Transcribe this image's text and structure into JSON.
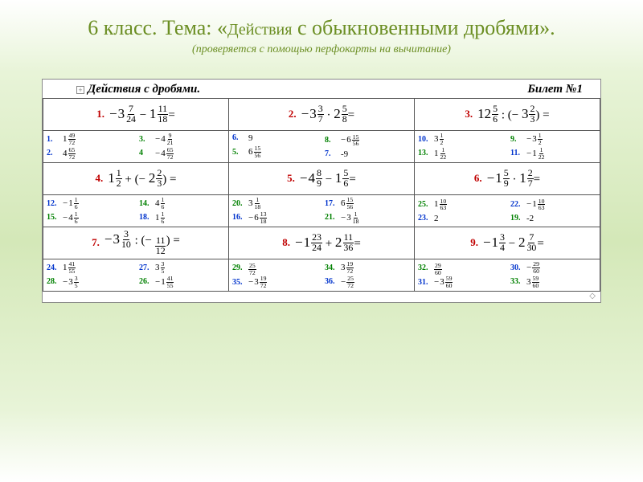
{
  "title_a": "6 класс.  Тема: «",
  "title_b": "Действия",
  "title_c": " с  обыкновенными дробями».",
  "subtitle": "(проверяется  с  помощью  перфокарты  на  вычитание)",
  "card_title": "Действия  с  дробями.",
  "card_ticket": "Билет №1",
  "colors": {
    "red": "#c00000",
    "blue": "#0033cc",
    "green": "#008000"
  },
  "problems": [
    [
      {
        "num": "1.",
        "color": "red",
        "expr": {
          "type": "mixed_op",
          "a": {
            "sign": "− ",
            "w": "3",
            "n": "7",
            "d": "24"
          },
          "op": "−",
          "b": {
            "w": "1",
            "n": "11",
            "d": "18"
          },
          "tail": "="
        }
      },
      {
        "num": "2.",
        "color": "red",
        "expr": {
          "type": "mixed_op",
          "a": {
            "sign": "− ",
            "w": "3",
            "n": "3",
            "d": "7"
          },
          "op": "·",
          "b": {
            "w": "2",
            "n": "5",
            "d": "8"
          },
          "tail": "="
        }
      },
      {
        "num": "3.",
        "color": "red",
        "expr": {
          "type": "mixed_op",
          "a": {
            "w": "12",
            "n": "5",
            "d": "6"
          },
          "op": ": (−",
          "b": {
            "w": "3",
            "n": "2",
            "d": "3"
          },
          "tail": ") ="
        }
      }
    ],
    [
      {
        "num": "4.",
        "color": "red",
        "expr": {
          "type": "mixed_op",
          "a": {
            "w": "1",
            "n": "1",
            "d": "2"
          },
          "op": "+ (−",
          "b": {
            "w": "2",
            "n": "2",
            "d": "3"
          },
          "tail": ") ="
        }
      },
      {
        "num": "5.",
        "color": "red",
        "expr": {
          "type": "mixed_op",
          "a": {
            "sign": "− ",
            "w": "4",
            "n": "8",
            "d": "9"
          },
          "op": "−",
          "b": {
            "w": "1",
            "n": "5",
            "d": "6"
          },
          "tail": "="
        }
      },
      {
        "num": "6.",
        "color": "red",
        "expr": {
          "type": "mixed_op",
          "a": {
            "sign": "− ",
            "w": "1",
            "n": "5",
            "d": "9"
          },
          "op": "·",
          "b": {
            "w": "1",
            "n": "2",
            "d": "7"
          },
          "tail": "="
        }
      }
    ],
    [
      {
        "num": "7.",
        "color": "red",
        "expr": {
          "type": "mixed_op",
          "a": {
            "sign": "− ",
            "w": "3",
            "n": "3",
            "d": "10"
          },
          "op": ": (−",
          "b": {
            "w": "",
            "n": "11",
            "d": "12"
          },
          "tail": ") ="
        }
      },
      {
        "num": "8.",
        "color": "red",
        "expr": {
          "type": "mixed_op",
          "a": {
            "sign": "− ",
            "w": "1",
            "n": "23",
            "d": "24"
          },
          "op": "+",
          "b": {
            "w": "2",
            "n": "11",
            "d": "36"
          },
          "tail": "="
        }
      },
      {
        "num": "9.",
        "color": "red",
        "expr": {
          "type": "mixed_op",
          "a": {
            "sign": "− ",
            "w": "1",
            "n": "3",
            "d": "4"
          },
          "op": "−",
          "b": {
            "w": "2",
            "n": "7",
            "d": "30"
          },
          "tail": "="
        }
      }
    ]
  ],
  "answers": [
    [
      {
        "cols": [
          [
            {
              "n": "1.",
              "c": "blue",
              "v": {
                "w": "1",
                "n": "49",
                "d": "72"
              }
            },
            {
              "n": "2.",
              "c": "blue",
              "v": {
                "w": "4",
                "n": "65",
                "d": "72"
              }
            }
          ],
          [
            {
              "n": "3.",
              "c": "green",
              "v": {
                "s": "−",
                "w": "4",
                "n": "9",
                "d": "21"
              }
            },
            {
              "n": "4",
              "c": "green",
              "v": {
                "s": "−",
                "w": "4",
                "n": "65",
                "d": "72"
              }
            }
          ]
        ]
      },
      {
        "cols": [
          [
            {
              "n": "6.",
              "c": "blue",
              "v": {
                "plain": "9"
              }
            },
            {
              "n": "5.",
              "c": "green",
              "v": {
                "w": "6",
                "n": "15",
                "d": "56"
              }
            }
          ],
          [
            {
              "n": "8.",
              "c": "green",
              "v": {
                "s": "−",
                "w": "6",
                "n": "15",
                "d": "56"
              }
            },
            {
              "n": "7.",
              "c": "blue",
              "v": {
                "plain": "-9"
              }
            }
          ]
        ]
      },
      {
        "cols": [
          [
            {
              "n": "10.",
              "c": "blue",
              "v": {
                "w": "3",
                "n": "1",
                "d": "2"
              }
            },
            {
              "n": "13.",
              "c": "green",
              "v": {
                "w": "1",
                "n": "1",
                "d": "22"
              }
            }
          ],
          [
            {
              "n": "9.",
              "c": "green",
              "v": {
                "s": "−",
                "w": "3",
                "n": "1",
                "d": "2"
              }
            },
            {
              "n": "11.",
              "c": "blue",
              "v": {
                "s": "−",
                "w": "1",
                "n": "1",
                "d": "22"
              }
            }
          ]
        ]
      }
    ],
    [
      {
        "cols": [
          [
            {
              "n": "12.",
              "c": "blue",
              "v": {
                "s": "−",
                "w": "1",
                "n": "1",
                "d": "6"
              }
            },
            {
              "n": "15.",
              "c": "green",
              "v": {
                "s": "−",
                "w": "4",
                "n": "1",
                "d": "6"
              }
            }
          ],
          [
            {
              "n": "14.",
              "c": "green",
              "v": {
                "w": "4",
                "n": "1",
                "d": "6"
              }
            },
            {
              "n": "18.",
              "c": "blue",
              "v": {
                "w": "1",
                "n": "1",
                "d": "6"
              }
            }
          ]
        ]
      },
      {
        "cols": [
          [
            {
              "n": "20.",
              "c": "green",
              "v": {
                "w": "3",
                "n": "1",
                "d": "18"
              }
            },
            {
              "n": "16.",
              "c": "blue",
              "v": {
                "s": "−",
                "w": "6",
                "n": "13",
                "d": "18"
              }
            }
          ],
          [
            {
              "n": "17.",
              "c": "blue",
              "v": {
                "w": "6",
                "n": "15",
                "d": "56"
              }
            },
            {
              "n": "21.",
              "c": "green",
              "v": {
                "s": "−",
                "w": "3",
                "n": "1",
                "d": "18"
              }
            }
          ]
        ]
      },
      {
        "cols": [
          [
            {
              "n": "25.",
              "c": "green",
              "v": {
                "w": "1",
                "n": "10",
                "d": "63"
              }
            },
            {
              "n": "23.",
              "c": "blue",
              "v": {
                "plain": "2"
              }
            }
          ],
          [
            {
              "n": "22.",
              "c": "blue",
              "v": {
                "s": "−",
                "w": "1",
                "n": "10",
                "d": "63"
              }
            },
            {
              "n": "19.",
              "c": "green",
              "v": {
                "plain": "-2"
              }
            }
          ]
        ]
      }
    ],
    [
      {
        "cols": [
          [
            {
              "n": "24.",
              "c": "blue",
              "v": {
                "w": "1",
                "n": "41",
                "d": "55"
              }
            },
            {
              "n": "28.",
              "c": "green",
              "v": {
                "s": "−",
                "w": "3",
                "n": "3",
                "d": "5"
              }
            }
          ],
          [
            {
              "n": "27.",
              "c": "blue",
              "v": {
                "w": "3",
                "n": "3",
                "d": "5"
              }
            },
            {
              "n": "26.",
              "c": "green",
              "v": {
                "s": "−",
                "w": "1",
                "n": "41",
                "d": "55"
              }
            }
          ]
        ]
      },
      {
        "cols": [
          [
            {
              "n": "29.",
              "c": "green",
              "v": {
                "n": "25",
                "d": "72"
              }
            },
            {
              "n": "35.",
              "c": "blue",
              "v": {
                "s": "−",
                "w": "3",
                "n": "19",
                "d": "72"
              }
            }
          ],
          [
            {
              "n": "34.",
              "c": "green",
              "v": {
                "w": "3",
                "n": "19",
                "d": "72"
              }
            },
            {
              "n": "36.",
              "c": "blue",
              "v": {
                "s": "−",
                "n": "25",
                "d": "72"
              }
            }
          ]
        ]
      },
      {
        "cols": [
          [
            {
              "n": "32.",
              "c": "green",
              "v": {
                "n": "29",
                "d": "60"
              }
            },
            {
              "n": "31.",
              "c": "blue",
              "v": {
                "s": "−",
                "w": "3",
                "n": "59",
                "d": "60"
              }
            }
          ],
          [
            {
              "n": "30.",
              "c": "blue",
              "v": {
                "s": "−",
                "n": "29",
                "d": "60"
              }
            },
            {
              "n": "33.",
              "c": "green",
              "v": {
                "w": "3",
                "n": "59",
                "d": "60"
              }
            }
          ]
        ]
      }
    ]
  ]
}
